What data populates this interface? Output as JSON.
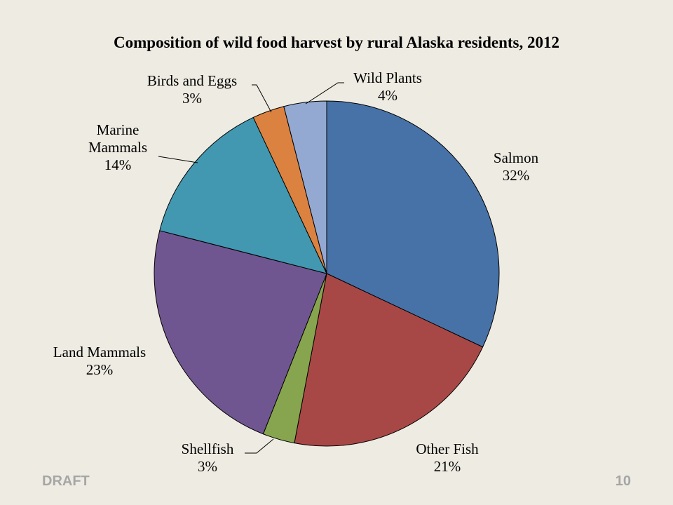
{
  "chart_data": {
    "type": "pie",
    "title": "Composition of wild food harvest by rural Alaska residents, 2012",
    "start": "12 o'clock",
    "direction": "clockwise",
    "slices": [
      {
        "label": "Salmon",
        "value": 32,
        "pct_label": "32%",
        "color": "#4672a7"
      },
      {
        "label": "Other Fish",
        "value": 21,
        "pct_label": "21%",
        "color": "#a84846"
      },
      {
        "label": "Shellfish",
        "value": 3,
        "pct_label": "3%",
        "color": "#87a44e"
      },
      {
        "label": "Land Mammals",
        "value": 23,
        "pct_label": "23%",
        "color": "#6f5690"
      },
      {
        "label": "Marine Mammals",
        "value": 14,
        "pct_label": "14%",
        "color": "#4198b0"
      },
      {
        "label": "Birds and Eggs",
        "value": 3,
        "pct_label": "3%",
        "color": "#dc8240"
      },
      {
        "label": "Wild Plants",
        "value": 4,
        "pct_label": "4%",
        "color": "#93a9d1"
      }
    ]
  },
  "footer": {
    "left": "DRAFT",
    "right": "10"
  }
}
